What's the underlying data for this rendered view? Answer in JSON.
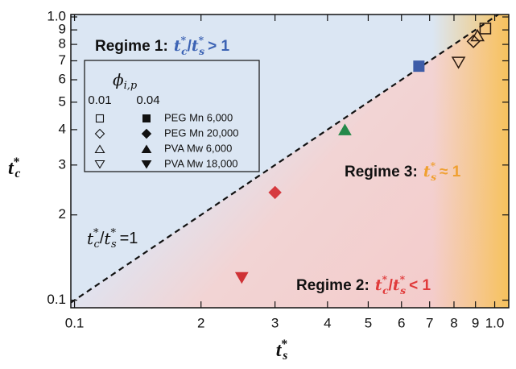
{
  "chart_data": {
    "type": "scatter",
    "log_x": true,
    "log_y": true,
    "x_label": {
      "base": "t",
      "sup": "*",
      "sub": "s"
    },
    "y_label": {
      "base": "t",
      "sup": "*",
      "sub": "c"
    },
    "xlim": [
      0.098,
      1.08
    ],
    "ylim": [
      0.094,
      1.02
    ],
    "xticks": [
      0.1,
      {
        "value": 0.2,
        "label": "2"
      },
      {
        "value": 0.3,
        "label": "3"
      },
      {
        "value": 0.4,
        "label": "4"
      },
      {
        "value": 0.5,
        "label": "5"
      },
      {
        "value": 0.6,
        "label": "6"
      },
      {
        "value": 0.7,
        "label": "7"
      },
      {
        "value": 0.8,
        "label": "8"
      },
      {
        "value": 0.9,
        "label": "9"
      },
      {
        "value": 1,
        "label": "1.0"
      }
    ],
    "yticks": [
      0.1,
      {
        "value": 0.2,
        "label": "2"
      },
      {
        "value": 0.3,
        "label": "3"
      },
      {
        "value": 0.4,
        "label": "4"
      },
      {
        "value": 0.5,
        "label": "5"
      },
      {
        "value": 0.6,
        "label": "6"
      },
      {
        "value": 0.7,
        "label": "7"
      },
      {
        "value": 0.8,
        "label": "8"
      },
      {
        "value": 0.9,
        "label": "9"
      },
      {
        "value": 1,
        "label": "1.0"
      }
    ],
    "legend": {
      "title": {
        "base": "ϕ",
        "sub": "i,p"
      },
      "columns": [
        "0.01",
        "0.04"
      ]
    },
    "series": [
      {
        "name": "PEG Mn 6,000",
        "marker": "square",
        "color": "#3d5ca8",
        "x": [
          0.95,
          0.66
        ],
        "y": [
          0.91,
          0.67
        ]
      },
      {
        "name": "PEG Mn 20,000",
        "marker": "diamond",
        "color": "#d63a3f",
        "x": [
          0.89,
          0.3
        ],
        "y": [
          0.82,
          0.24
        ]
      },
      {
        "name": "PVA Mw 6,000",
        "marker": "triangle",
        "color": "#25894a",
        "x": [
          0.91,
          0.44
        ],
        "y": [
          0.86,
          0.4
        ]
      },
      {
        "name": "PVA Mw 18,000",
        "marker": "triangle-down",
        "color": "#cf3236",
        "x": [
          0.82,
          0.25
        ],
        "y": [
          0.69,
          0.12
        ]
      }
    ],
    "annotations": [
      {
        "label": "Regime 1:",
        "expr": [
          {
            "base": "t",
            "sup": "*",
            "sub": "c"
          },
          "/",
          {
            "base": "t",
            "sup": "*",
            "sub": "s"
          }
        ],
        "relation": "> 1",
        "color": "#3c63b4"
      },
      {
        "label": "Regime 3:",
        "expr": [
          {
            "base": "t",
            "sup": "*",
            "sub": "s"
          }
        ],
        "relation": "≈ 1",
        "color": "#f0a030"
      },
      {
        "label": "Regime 2:",
        "expr": [
          {
            "base": "t",
            "sup": "*",
            "sub": "c"
          },
          "/",
          {
            "base": "t",
            "sup": "*",
            "sub": "s"
          }
        ],
        "relation": "< 1",
        "color": "#e03a3a"
      },
      {
        "expr": [
          {
            "base": "t",
            "sup": "*",
            "sub": "c"
          },
          "/",
          {
            "base": "t",
            "sup": "*",
            "sub": "s"
          }
        ],
        "relation": "=1",
        "color": "#111111"
      }
    ]
  }
}
